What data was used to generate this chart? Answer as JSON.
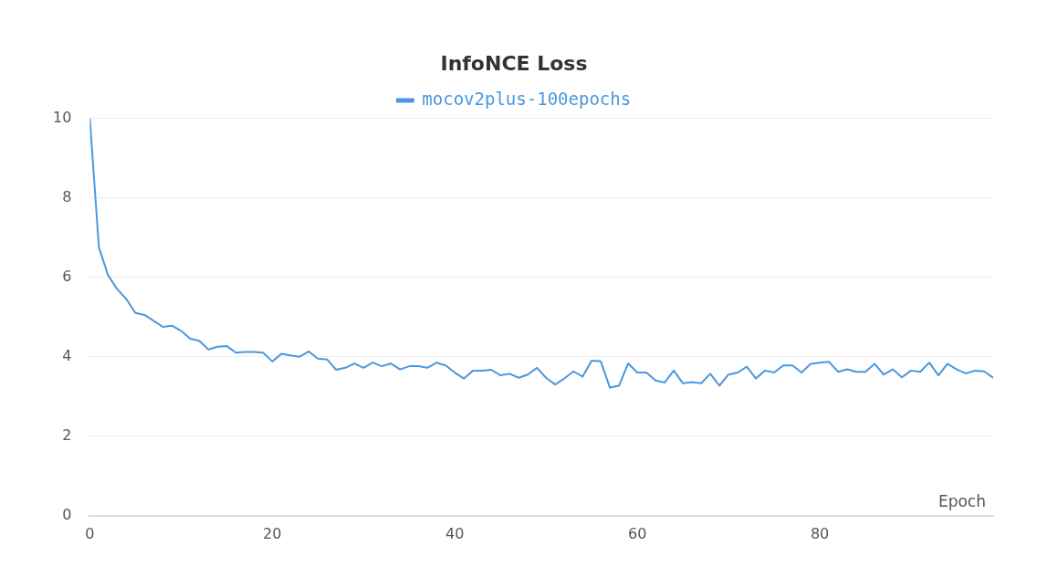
{
  "chart_data": {
    "type": "line",
    "title": "InfoNCE Loss",
    "xlabel": "Epoch",
    "x": [
      0,
      1,
      2,
      3,
      4,
      5,
      6,
      7,
      8,
      9,
      10,
      11,
      12,
      13,
      14,
      15,
      16,
      17,
      18,
      19,
      20,
      21,
      22,
      23,
      24,
      25,
      26,
      27,
      28,
      29,
      30,
      31,
      32,
      33,
      34,
      35,
      36,
      37,
      38,
      39,
      40,
      41,
      42,
      43,
      44,
      45,
      46,
      47,
      48,
      49,
      50,
      51,
      52,
      53,
      54,
      55,
      56,
      57,
      58,
      59,
      60,
      61,
      62,
      63,
      64,
      65,
      66,
      67,
      68,
      69,
      70,
      71,
      72,
      73,
      74,
      75,
      76,
      77,
      78,
      79,
      80,
      81,
      82,
      83,
      84,
      85,
      86,
      87,
      88,
      89,
      90,
      91,
      92,
      93,
      94,
      95,
      96,
      97,
      98,
      99
    ],
    "series": [
      {
        "name": "mocov2plus-100epochs",
        "color": "#4a98e0",
        "values": [
          10,
          6.75,
          6.05,
          5.7,
          5.45,
          5.1,
          5.05,
          4.9,
          4.75,
          4.78,
          4.65,
          4.45,
          4.4,
          4.18,
          4.25,
          4.27,
          4.1,
          4.12,
          4.12,
          4.1,
          3.88,
          4.07,
          4.03,
          4.0,
          4.13,
          3.95,
          3.93,
          3.67,
          3.72,
          3.83,
          3.72,
          3.85,
          3.76,
          3.83,
          3.68,
          3.76,
          3.76,
          3.72,
          3.85,
          3.78,
          3.6,
          3.45,
          3.65,
          3.65,
          3.67,
          3.53,
          3.57,
          3.47,
          3.55,
          3.72,
          3.47,
          3.3,
          3.45,
          3.63,
          3.5,
          3.9,
          3.88,
          3.22,
          3.27,
          3.83,
          3.6,
          3.6,
          3.4,
          3.35,
          3.65,
          3.33,
          3.36,
          3.33,
          3.57,
          3.27,
          3.55,
          3.6,
          3.75,
          3.45,
          3.65,
          3.6,
          3.78,
          3.78,
          3.6,
          3.82,
          3.85,
          3.87,
          3.62,
          3.68,
          3.62,
          3.62,
          3.82,
          3.55,
          3.68,
          3.48,
          3.65,
          3.62,
          3.85,
          3.53,
          3.82,
          3.68,
          3.58,
          3.65,
          3.63,
          3.47
        ]
      }
    ],
    "xlim": [
      0,
      99
    ],
    "xticks": [
      0,
      20,
      40,
      60,
      80
    ],
    "ylim": [
      0,
      10
    ],
    "yticks": [
      0,
      2,
      4,
      6,
      8,
      10
    ],
    "grid": "y",
    "legend": "top",
    "marker": "none",
    "line_style": "solid"
  }
}
